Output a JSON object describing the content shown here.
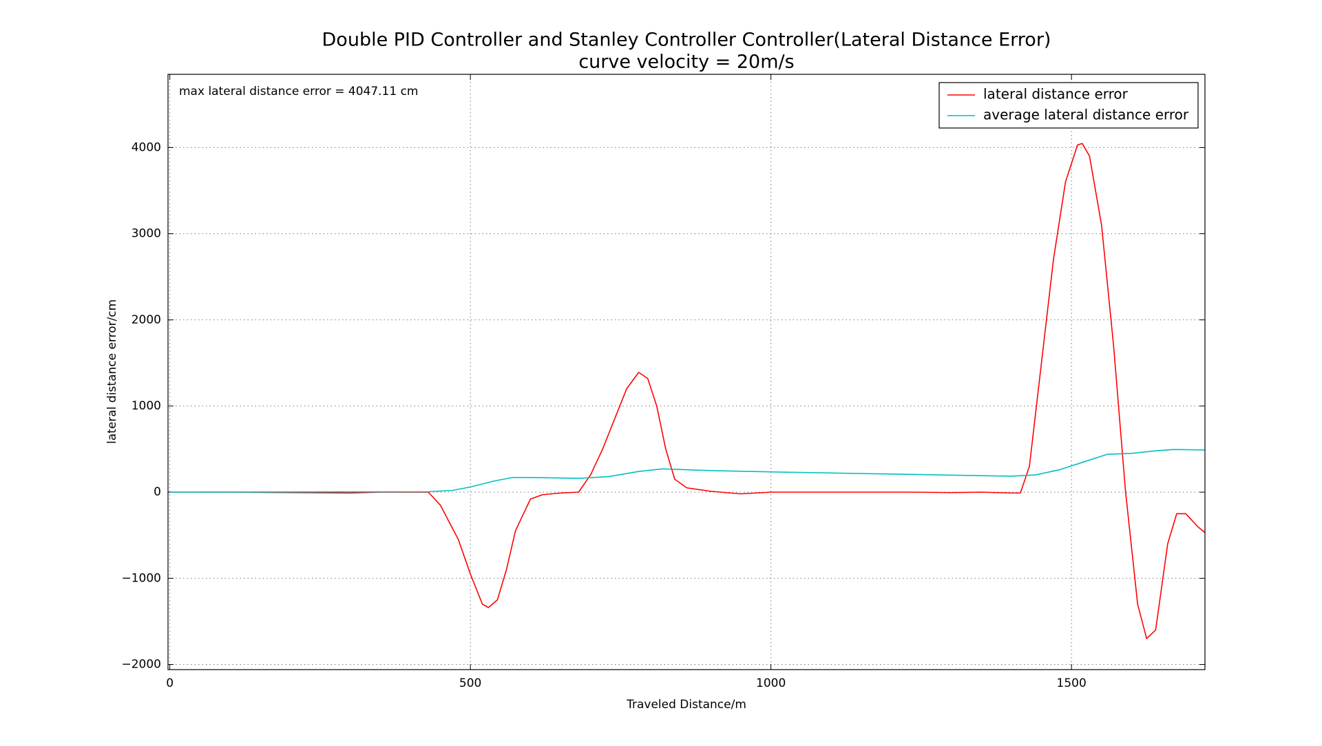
{
  "chart_data": {
    "type": "line",
    "title": "Double PID Controller and Stanley Controller Controller(Lateral Distance Error)",
    "subtitle": "curve velocity = 20m/s",
    "x_label": "Traveled Distance/m",
    "y_label": "lateral distance error/cm",
    "annotation": "max lateral distance error = 4047.11 cm",
    "xlim": [
      -3,
      1722
    ],
    "ylim": [
      -2060,
      4850
    ],
    "xticks": [
      0,
      500,
      1000,
      1500
    ],
    "yticks": [
      {
        "value": -2000,
        "label": "−2000"
      },
      {
        "value": -1000,
        "label": "−1000"
      },
      0,
      1000,
      2000,
      3000,
      4000
    ],
    "grid": true,
    "legend": "upper right",
    "series": [
      {
        "name": "lateral distance error",
        "color": "#ff0000",
        "x": [
          0,
          100,
          200,
          300,
          350,
          430,
          450,
          480,
          500,
          520,
          530,
          545,
          560,
          575,
          585,
          600,
          620,
          650,
          680,
          700,
          720,
          740,
          760,
          780,
          795,
          810,
          825,
          840,
          860,
          900,
          950,
          1000,
          1100,
          1230,
          1300,
          1350,
          1400,
          1415,
          1430,
          1450,
          1470,
          1490,
          1510,
          1518,
          1530,
          1550,
          1570,
          1590,
          1610,
          1625,
          1640,
          1660,
          1675,
          1690,
          1710,
          1722
        ],
        "values": [
          0,
          0,
          -5,
          -10,
          0,
          0,
          -150,
          -550,
          -950,
          -1300,
          -1340,
          -1250,
          -900,
          -450,
          -300,
          -80,
          -30,
          -10,
          0,
          200,
          500,
          850,
          1200,
          1390,
          1320,
          1000,
          500,
          150,
          50,
          10,
          -20,
          0,
          0,
          0,
          -5,
          0,
          -10,
          -10,
          300,
          1500,
          2700,
          3600,
          4030,
          4047,
          3900,
          3100,
          1700,
          0,
          -1300,
          -1700,
          -1600,
          -600,
          -250,
          -250,
          -400,
          -470
        ]
      },
      {
        "name": "average lateral distance error",
        "color": "#00bfbf",
        "x": [
          0,
          430,
          470,
          500,
          540,
          570,
          600,
          680,
          730,
          780,
          820,
          900,
          1000,
          1200,
          1400,
          1440,
          1480,
          1520,
          1560,
          1600,
          1640,
          1670,
          1722
        ],
        "values": [
          0,
          5,
          20,
          60,
          130,
          170,
          170,
          160,
          180,
          240,
          270,
          250,
          235,
          210,
          185,
          200,
          260,
          350,
          440,
          450,
          480,
          495,
          490
        ]
      }
    ]
  }
}
